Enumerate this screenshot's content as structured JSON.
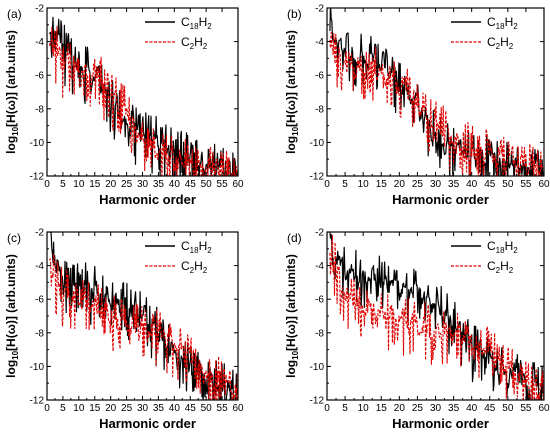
{
  "chart_data": [
    {
      "panel_label": "(a)",
      "type": "line",
      "xlabel": "Harmonic order",
      "ylabel": "log10[H(ω)] (arb.units)",
      "xlim": [
        0,
        60
      ],
      "ylim": [
        -12,
        -2
      ],
      "xticks": [
        0,
        5,
        10,
        15,
        20,
        25,
        30,
        35,
        40,
        45,
        50,
        55,
        60
      ],
      "yticks": [
        -12,
        -10,
        -8,
        -6,
        -4,
        -2
      ],
      "legend": {
        "position": "top-right",
        "entries": [
          "C18H2",
          "C2H2"
        ]
      },
      "series": [
        {
          "name": "C18H2",
          "color": "#000000",
          "dash": "solid",
          "envelope": {
            "x": [
              1,
              3,
              5,
              7,
              10,
              15,
              20,
              25,
              30,
              35,
              40,
              45,
              50,
              55,
              60
            ],
            "y": [
              -3.5,
              -3.6,
              -4.4,
              -4.9,
              -5.3,
              -6.2,
              -7.5,
              -9.0,
              -9.4,
              -10.0,
              -10.6,
              -11.0,
              -11.4,
              -11.7,
              -11.9
            ]
          }
        },
        {
          "name": "C2H2",
          "color": "#e00000",
          "dash": "dashed",
          "envelope": {
            "x": [
              1,
              3,
              5,
              7,
              10,
              15,
              20,
              25,
              30,
              35,
              40,
              45,
              50,
              55,
              60
            ],
            "y": [
              -3.8,
              -4.5,
              -5.3,
              -5.6,
              -5.8,
              -6.0,
              -7.0,
              -8.2,
              -10.0,
              -10.6,
              -11.0,
              -11.4,
              -11.7,
              -11.9,
              -12.0
            ]
          }
        }
      ]
    },
    {
      "panel_label": "(b)",
      "type": "line",
      "xlabel": "Harmonic order",
      "ylabel": "log10[H(ω)] (arb.units)",
      "xlim": [
        0,
        60
      ],
      "ylim": [
        -12,
        -2
      ],
      "xticks": [
        0,
        5,
        10,
        15,
        20,
        25,
        30,
        35,
        40,
        45,
        50,
        55,
        60
      ],
      "yticks": [
        -12,
        -10,
        -8,
        -6,
        -4,
        -2
      ],
      "legend": {
        "position": "top-right",
        "entries": [
          "C18H2",
          "C2H2"
        ]
      },
      "series": [
        {
          "name": "C18H2",
          "color": "#000000",
          "dash": "solid",
          "envelope": {
            "x": [
              1,
              3,
              5,
              7,
              10,
              15,
              20,
              25,
              30,
              35,
              40,
              45,
              50,
              55,
              60
            ],
            "y": [
              -3.2,
              -4.2,
              -4.8,
              -5.0,
              -5.0,
              -5.3,
              -6.4,
              -7.6,
              -9.8,
              -10.3,
              -10.6,
              -11.0,
              -11.3,
              -11.6,
              -11.8
            ]
          }
        },
        {
          "name": "C2H2",
          "color": "#e00000",
          "dash": "dashed",
          "envelope": {
            "x": [
              1,
              3,
              5,
              7,
              10,
              15,
              20,
              25,
              30,
              35,
              40,
              45,
              50,
              55,
              60
            ],
            "y": [
              -4.0,
              -4.8,
              -5.4,
              -5.5,
              -5.6,
              -5.8,
              -6.3,
              -7.8,
              -9.0,
              -9.8,
              -10.3,
              -10.7,
              -11.0,
              -11.3,
              -11.6
            ]
          }
        }
      ]
    },
    {
      "panel_label": "(c)",
      "type": "line",
      "xlabel": "Harmonic order",
      "ylabel": "log10[H(ω)] (arb.units)",
      "xlim": [
        0,
        60
      ],
      "ylim": [
        -12,
        -2
      ],
      "xticks": [
        0,
        5,
        10,
        15,
        20,
        25,
        30,
        35,
        40,
        45,
        50,
        55,
        60
      ],
      "yticks": [
        -12,
        -10,
        -8,
        -6,
        -4,
        -2
      ],
      "legend": {
        "position": "top-right",
        "entries": [
          "C18H2",
          "C2H2"
        ]
      },
      "series": [
        {
          "name": "C18H2",
          "color": "#000000",
          "dash": "solid",
          "envelope": {
            "x": [
              1,
              3,
              5,
              7,
              10,
              15,
              20,
              25,
              30,
              35,
              40,
              45,
              50,
              55,
              60
            ],
            "y": [
              -2.5,
              -4.0,
              -5.0,
              -5.0,
              -5.2,
              -5.5,
              -6.0,
              -6.5,
              -7.0,
              -8.0,
              -9.3,
              -10.3,
              -10.7,
              -11.2,
              -11.6
            ]
          }
        },
        {
          "name": "C2H2",
          "color": "#e00000",
          "dash": "dashed",
          "envelope": {
            "x": [
              1,
              3,
              5,
              7,
              10,
              15,
              20,
              25,
              30,
              35,
              40,
              45,
              50,
              55,
              60
            ],
            "y": [
              -3.8,
              -5.0,
              -5.6,
              -5.8,
              -6.0,
              -6.5,
              -7.0,
              -7.6,
              -7.8,
              -8.0,
              -8.6,
              -9.6,
              -10.4,
              -11.0,
              -11.6
            ]
          }
        }
      ]
    },
    {
      "panel_label": "(d)",
      "type": "line",
      "xlabel": "Harmonic order",
      "ylabel": "log10[H(ω)] (arb.units)",
      "xlim": [
        0,
        60
      ],
      "ylim": [
        -12,
        -2
      ],
      "xticks": [
        0,
        5,
        10,
        15,
        20,
        25,
        30,
        35,
        40,
        45,
        50,
        55,
        60
      ],
      "yticks": [
        -12,
        -10,
        -8,
        -6,
        -4,
        -2
      ],
      "legend": {
        "position": "top-right",
        "entries": [
          "C18H2",
          "C2H2"
        ]
      },
      "series": [
        {
          "name": "C18H2",
          "color": "#000000",
          "dash": "solid",
          "envelope": {
            "x": [
              1,
              3,
              5,
              7,
              10,
              15,
              20,
              25,
              30,
              35,
              40,
              45,
              50,
              55,
              60
            ],
            "y": [
              -2.6,
              -3.8,
              -4.3,
              -4.5,
              -4.7,
              -4.9,
              -5.2,
              -5.5,
              -6.2,
              -7.5,
              -8.8,
              -9.6,
              -10.4,
              -11.0,
              -11.5
            ]
          }
        },
        {
          "name": "C2H2",
          "color": "#e00000",
          "dash": "dashed",
          "envelope": {
            "x": [
              1,
              3,
              5,
              7,
              10,
              15,
              20,
              25,
              30,
              35,
              40,
              45,
              50,
              55,
              60
            ],
            "y": [
              -3.4,
              -4.5,
              -5.6,
              -6.0,
              -6.3,
              -6.8,
              -7.2,
              -7.6,
              -7.9,
              -8.0,
              -8.5,
              -9.2,
              -10.2,
              -11.0,
              -11.4
            ]
          }
        }
      ]
    }
  ],
  "legend_labels": {
    "c18": {
      "main": "C",
      "sub1": "18",
      "mid": "H",
      "sub2": "2"
    },
    "c2": {
      "main": "C",
      "sub1": "2",
      "mid": "H",
      "sub2": "2"
    }
  },
  "axis_text": {
    "xlabel": "Harmonic order",
    "ylabel_pre": "log",
    "ylabel_sub": "10",
    "ylabel_post": "[H(ω)] (arb.units)"
  }
}
